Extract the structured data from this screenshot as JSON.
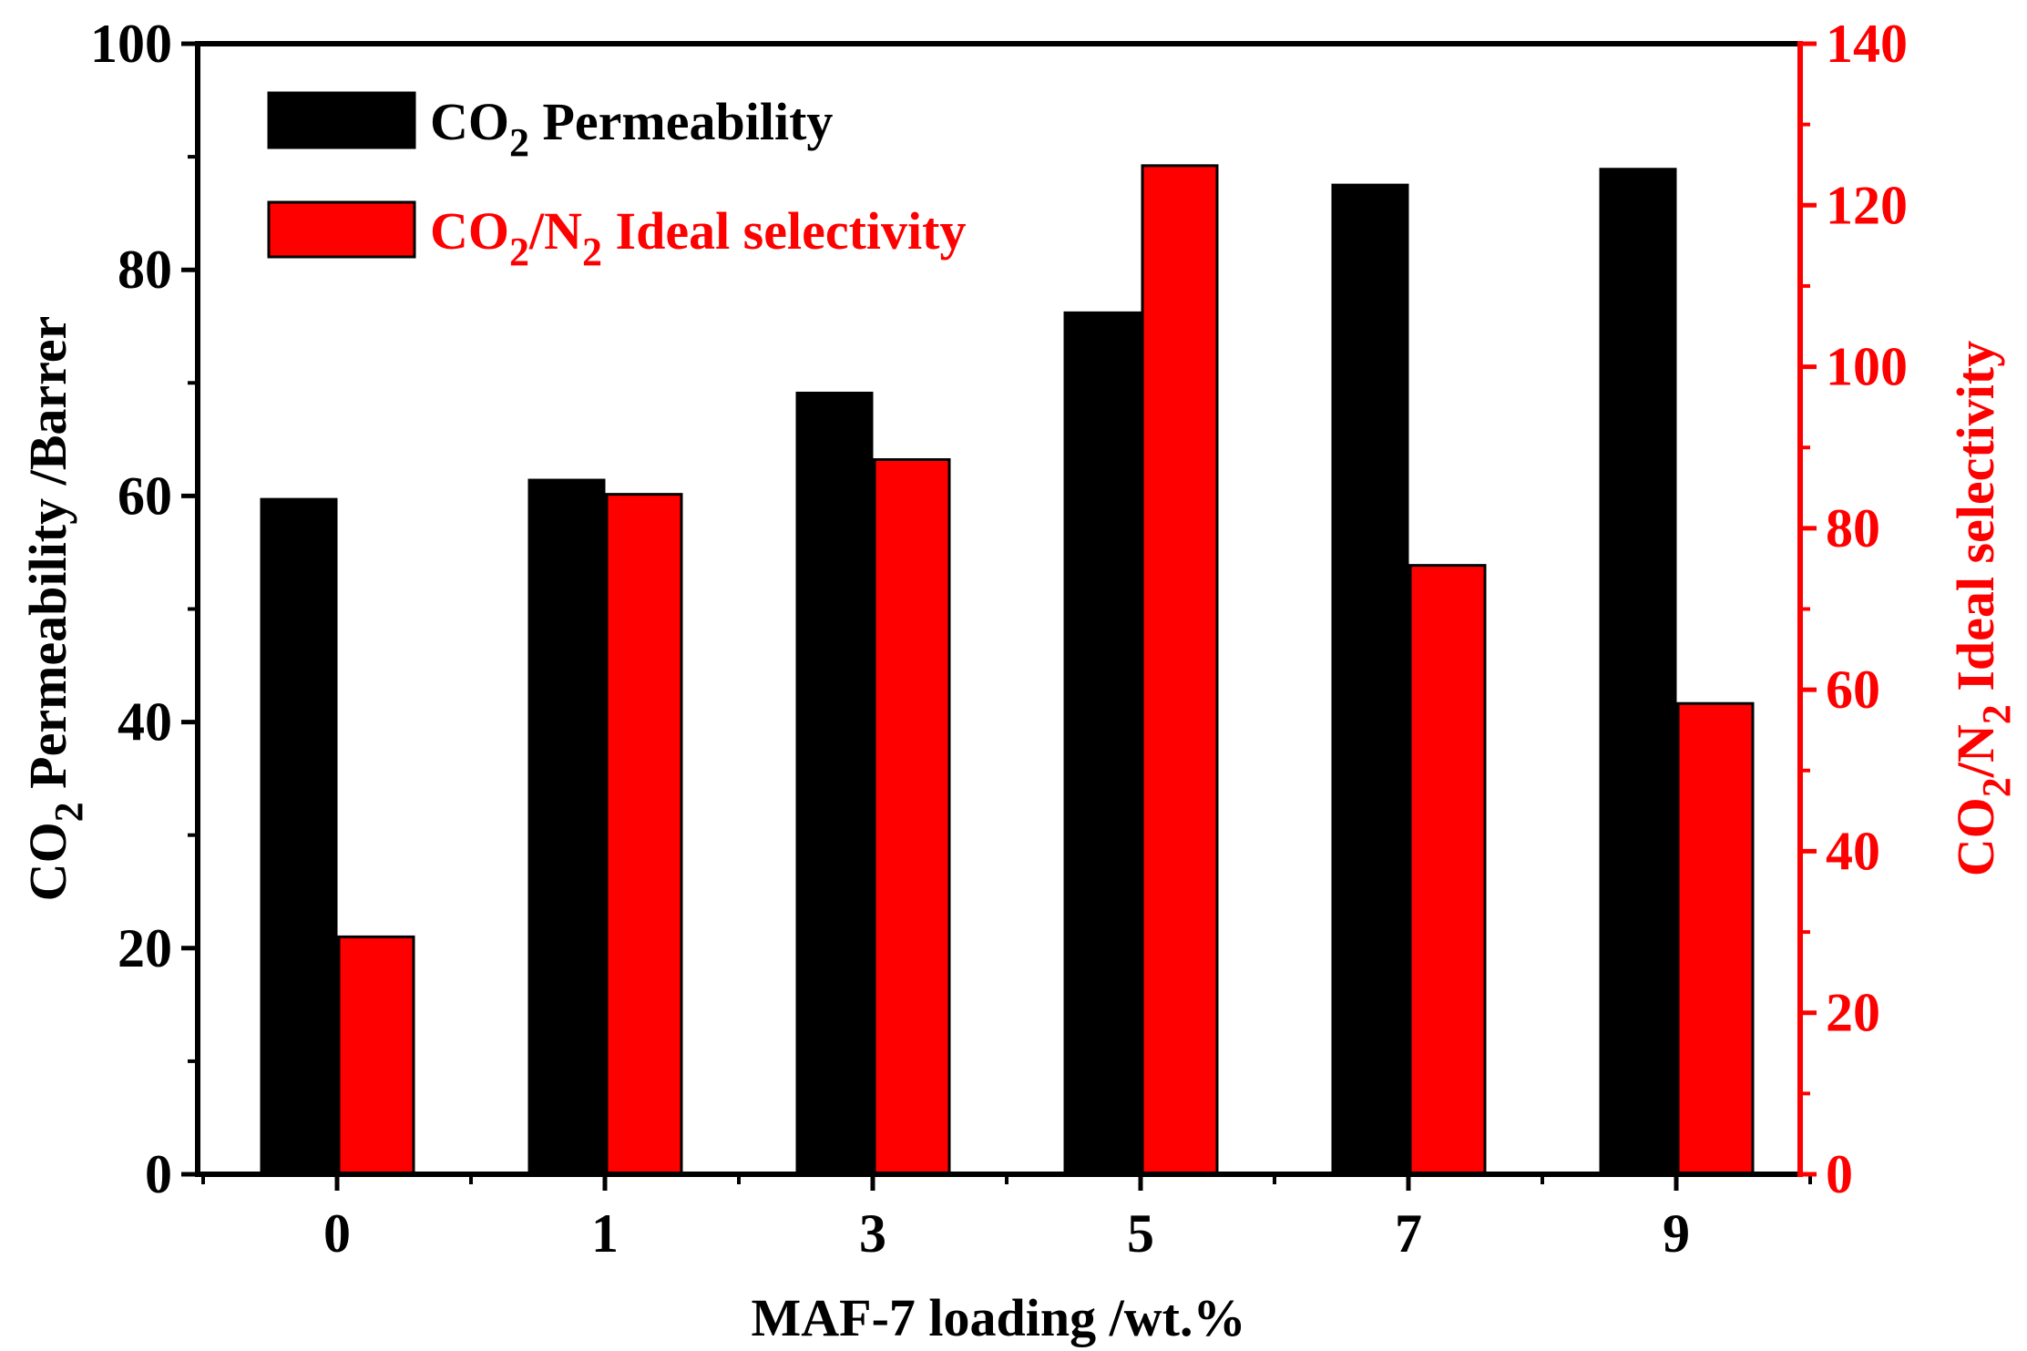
{
  "colors": {
    "permeability": "#000000",
    "selectivity": "#ff0000",
    "axis_left": "#000000",
    "axis_right": "#ff0000",
    "background": "#ffffff"
  },
  "chart_data": {
    "type": "bar",
    "title": "",
    "xlabel": "MAF-7 loading /wt.%",
    "ylabel": "CO2 Permeability /Barrer",
    "y2label": "CO2/N2 Ideal selectivity",
    "categories": [
      "0",
      "1",
      "3",
      "5",
      "7",
      "9"
    ],
    "ylim": [
      0,
      100
    ],
    "y2lim": [
      0,
      140
    ],
    "yticks": [
      "0",
      "20",
      "40",
      "60",
      "80",
      "100"
    ],
    "y2ticks": [
      "0",
      "20",
      "40",
      "60",
      "80",
      "100",
      "120",
      "140"
    ],
    "series": [
      {
        "name": "CO2 Permeability",
        "axis": "left",
        "values": [
          59.7,
          61.4,
          69.1,
          76.2,
          87.5,
          88.9
        ]
      },
      {
        "name": "CO2/N2 Ideal selectivity",
        "axis": "right",
        "values": [
          29.4,
          84.2,
          88.5,
          124.9,
          75.4,
          58.3
        ]
      }
    ],
    "legend_position": "top-left",
    "grid": false
  },
  "legend": {
    "perm_label": {
      "main": "CO",
      "sub": "2",
      "rest": " Permeability"
    },
    "sel_label": {
      "main": "CO",
      "sub": "2",
      "mid": "/N",
      "sub2": "2",
      "rest": " Ideal selectivity"
    }
  },
  "axes": {
    "y_label_parts": {
      "main": "CO",
      "sub": "2",
      "rest": " Permeability /Barrer"
    },
    "y2_label_parts": {
      "main": "CO",
      "sub": "2",
      "mid": "/N",
      "sub2": "2",
      "rest": " Ideal selectivity"
    }
  }
}
